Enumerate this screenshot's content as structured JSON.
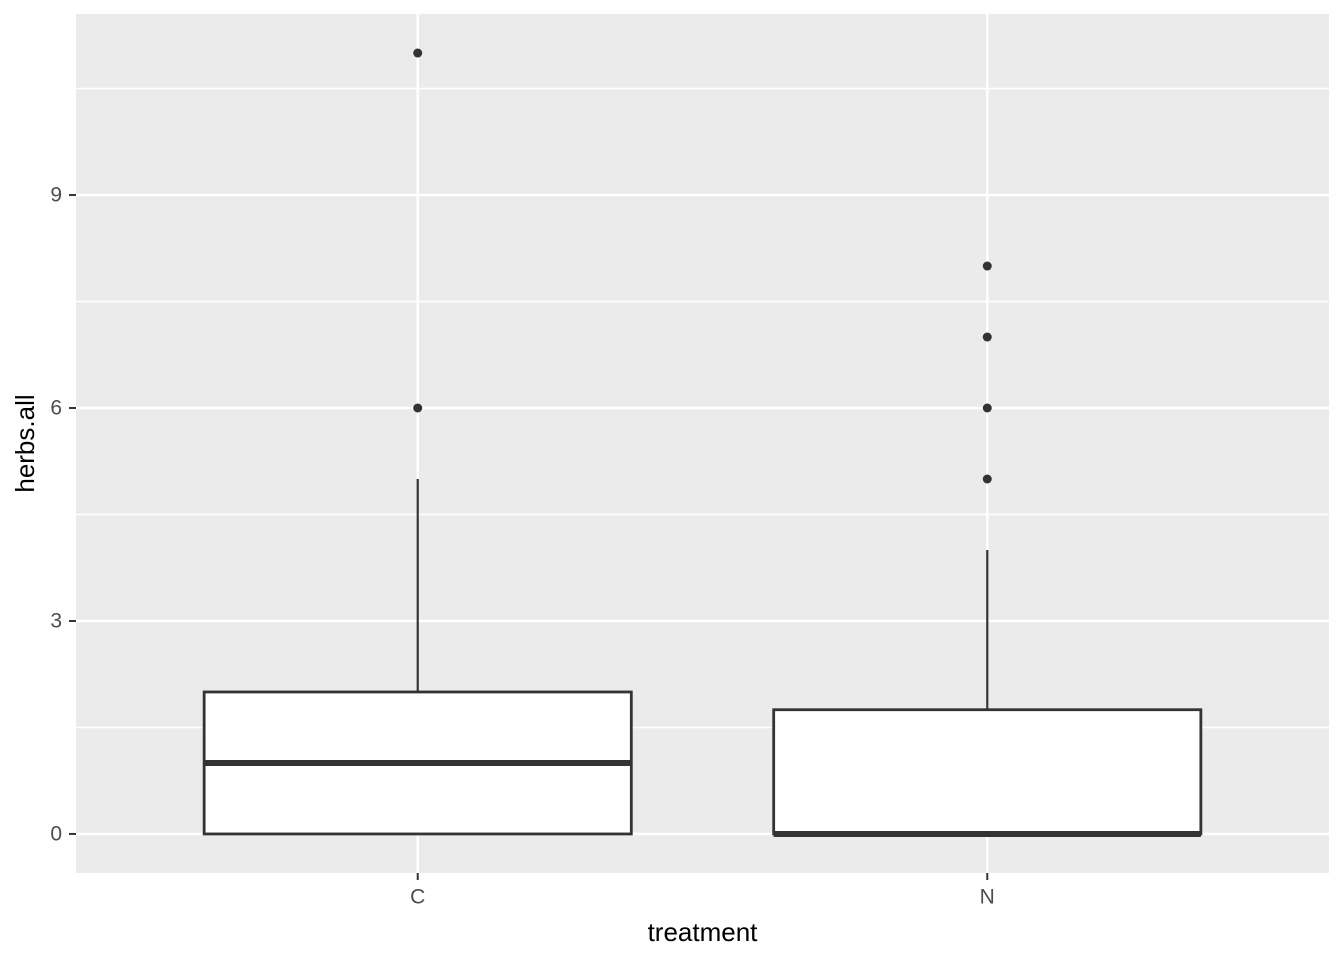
{
  "chart_data": {
    "type": "boxplot",
    "title": "",
    "xlabel": "treatment",
    "ylabel": "herbs.all",
    "categories": [
      "C",
      "N"
    ],
    "y_ticks": [
      0,
      3,
      6,
      9
    ],
    "y_minor_ticks": [
      1.5,
      4.5,
      7.5,
      10.5
    ],
    "ylim": [
      -0.55,
      11.55
    ],
    "box_width": 0.75,
    "series": [
      {
        "category": "C",
        "q1": 0,
        "median": 1,
        "q3": 2,
        "whisker_low": 0,
        "whisker_high": 5,
        "outliers": [
          6,
          11
        ]
      },
      {
        "category": "N",
        "q1": 0,
        "median": 0,
        "q3": 1.75,
        "whisker_low": 0,
        "whisker_high": 4,
        "outliers": [
          5,
          6,
          7,
          8
        ]
      }
    ],
    "legend": null,
    "grid": "on",
    "colors": {
      "figure_background": "#FFFFFF",
      "panel_background": "#EBEBEB",
      "gridline": "#FFFFFF",
      "box_fill": "#FFFFFF",
      "box_stroke": "#333333",
      "median_stroke": "#333333",
      "whisker_stroke": "#333333",
      "outlier_fill": "#333333",
      "tick_mark": "#333333",
      "axis_text": "#4D4D4D",
      "axis_title": "#000000"
    }
  }
}
